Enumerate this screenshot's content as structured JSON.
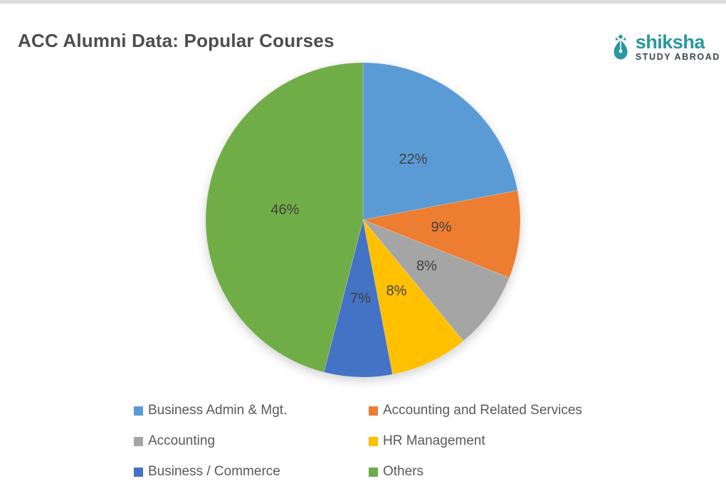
{
  "page": {
    "title": "ACC Alumni Data: Popular Courses",
    "title_color": "#4d4d4d",
    "background_color": "#ffffff",
    "top_border_color": "#dbdbdb"
  },
  "logo": {
    "brand": "shiksha",
    "tagline": "STUDY ABROAD",
    "brand_color": "#27989d",
    "tagline_color": "#3c4550",
    "icon": "pen-nib-icon"
  },
  "chart_data": {
    "type": "pie",
    "title": "ACC Alumni Data: Popular Courses",
    "start_angle_deg": 0,
    "direction": "clockwise",
    "label_format": "percent",
    "label_color": "#404040",
    "legend_position": "bottom",
    "legend_columns": 2,
    "slices": [
      {
        "label": "Business Admin & Mgt.",
        "value": 22,
        "display": "22%",
        "color": "#5B9BD5"
      },
      {
        "label": "Accounting and Related Services",
        "value": 9,
        "display": "9%",
        "color": "#ED7D31"
      },
      {
        "label": "Accounting",
        "value": 8,
        "display": "8%",
        "color": "#A5A5A5"
      },
      {
        "label": "HR Management",
        "value": 8,
        "display": "8%",
        "color": "#FFC000"
      },
      {
        "label": "Business / Commerce",
        "value": 7,
        "display": "7%",
        "color": "#4472C4"
      },
      {
        "label": "Others",
        "value": 46,
        "display": "46%",
        "color": "#70AD47"
      }
    ]
  }
}
